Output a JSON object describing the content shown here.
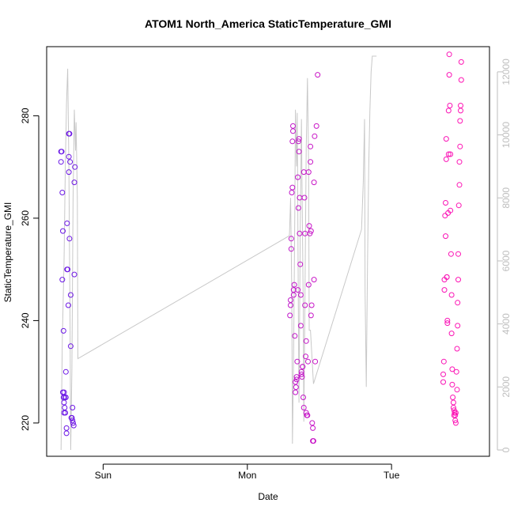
{
  "chart_data": {
    "type": "scatter",
    "title": "ATOM1 North_America StaticTemperature_GMI",
    "xlabel": "Date",
    "ylabel": "StaticTemperature_GMI",
    "x_ticks": [
      "Sun",
      "Mon",
      "Tue"
    ],
    "y_ticks": [
      220,
      240,
      260,
      280
    ],
    "y_range": [
      213.5,
      293.5
    ],
    "right_axis": {
      "ticks": [
        0,
        2000,
        4000,
        6000,
        8000,
        10000,
        12000
      ],
      "range": [
        -200,
        12800
      ],
      "color": "#bebebe",
      "series": "altitude trace (grey line)"
    },
    "x_units": "hours since Saturday 00:00",
    "x_range": [
      14.6,
      88.3
    ],
    "x_tick_values": [
      24,
      48,
      72
    ],
    "grid": false,
    "legend": "none",
    "point_color_start": "#6a17e6",
    "point_color_end": "#ff14b4",
    "line_color": "#c8c8c8",
    "line": [
      [
        17.0,
        0
      ],
      [
        17.2,
        3500
      ],
      [
        17.5,
        6000
      ],
      [
        17.7,
        9000
      ],
      [
        17.9,
        11000
      ],
      [
        18.1,
        12100
      ],
      [
        18.3,
        9000
      ],
      [
        18.5,
        4000
      ],
      [
        18.6,
        0
      ],
      [
        18.8,
        2500
      ],
      [
        19.0,
        8000
      ],
      [
        19.2,
        10800
      ],
      [
        19.4,
        9500
      ],
      [
        19.5,
        10400
      ],
      [
        19.7,
        8000
      ],
      [
        19.8,
        2900
      ],
      [
        55.0,
        6800
      ],
      [
        55.2,
        8000
      ],
      [
        55.4,
        5000
      ],
      [
        55.5,
        200
      ],
      [
        55.7,
        3000
      ],
      [
        55.9,
        7500
      ],
      [
        56.0,
        10800
      ],
      [
        56.2,
        9000
      ],
      [
        56.3,
        10700
      ],
      [
        56.5,
        4000
      ],
      [
        56.6,
        1500
      ],
      [
        56.8,
        7000
      ],
      [
        57.0,
        10500
      ],
      [
        57.1,
        8500
      ],
      [
        57.3,
        4500
      ],
      [
        57.4,
        900
      ],
      [
        57.6,
        5000
      ],
      [
        57.8,
        9500
      ],
      [
        58.0,
        11800
      ],
      [
        58.2,
        9000
      ],
      [
        58.3,
        3800
      ],
      [
        58.5,
        3800
      ],
      [
        59.0,
        2100
      ],
      [
        67.0,
        7000
      ],
      [
        67.3,
        8500
      ],
      [
        67.5,
        10500
      ],
      [
        67.6,
        5000
      ],
      [
        67.8,
        2000
      ],
      [
        68.0,
        6000
      ],
      [
        68.2,
        9000
      ],
      [
        68.4,
        10800
      ],
      [
        68.6,
        12000
      ],
      [
        68.8,
        12500
      ],
      [
        69.2,
        12500
      ],
      [
        69.5,
        12500
      ]
    ],
    "points": [
      [
        17.1,
        273
      ],
      [
        17.0,
        273
      ],
      [
        17.0,
        271
      ],
      [
        17.2,
        265
      ],
      [
        17.3,
        257.5
      ],
      [
        17.2,
        248
      ],
      [
        17.4,
        238
      ],
      [
        17.3,
        226
      ],
      [
        17.4,
        225
      ],
      [
        17.5,
        226
      ],
      [
        17.5,
        222
      ],
      [
        17.6,
        225
      ],
      [
        17.6,
        223
      ],
      [
        17.5,
        224
      ],
      [
        17.7,
        222
      ],
      [
        17.8,
        225
      ],
      [
        17.9,
        218
      ],
      [
        17.9,
        219
      ],
      [
        17.8,
        230
      ],
      [
        18.0,
        259
      ],
      [
        18.0,
        250
      ],
      [
        18.1,
        250
      ],
      [
        18.2,
        243
      ],
      [
        18.3,
        269
      ],
      [
        18.3,
        272
      ],
      [
        18.4,
        276.5
      ],
      [
        18.3,
        276.5
      ],
      [
        18.5,
        271
      ],
      [
        18.4,
        256
      ],
      [
        18.6,
        245
      ],
      [
        18.6,
        235
      ],
      [
        18.7,
        221
      ],
      [
        18.8,
        221
      ],
      [
        18.9,
        220.5
      ],
      [
        18.9,
        223
      ],
      [
        19.0,
        220
      ],
      [
        19.1,
        219.5
      ],
      [
        19.2,
        267
      ],
      [
        19.3,
        270
      ],
      [
        19.2,
        249
      ],
      [
        55.1,
        241
      ],
      [
        55.2,
        243
      ],
      [
        55.2,
        244
      ],
      [
        55.3,
        254
      ],
      [
        55.3,
        256
      ],
      [
        55.4,
        265
      ],
      [
        55.5,
        266
      ],
      [
        55.5,
        275
      ],
      [
        55.6,
        277
      ],
      [
        55.6,
        278
      ],
      [
        55.7,
        246
      ],
      [
        55.7,
        245
      ],
      [
        55.8,
        247
      ],
      [
        55.9,
        237
      ],
      [
        56.0,
        226
      ],
      [
        56.0,
        228
      ],
      [
        56.1,
        227
      ],
      [
        56.2,
        228.5
      ],
      [
        56.2,
        229
      ],
      [
        56.3,
        232
      ],
      [
        56.4,
        246
      ],
      [
        56.4,
        268
      ],
      [
        56.5,
        262
      ],
      [
        56.5,
        275
      ],
      [
        56.6,
        275.5
      ],
      [
        56.6,
        273
      ],
      [
        56.7,
        264
      ],
      [
        56.7,
        257
      ],
      [
        56.8,
        251
      ],
      [
        56.9,
        239
      ],
      [
        56.9,
        245
      ],
      [
        57.0,
        230
      ],
      [
        57.0,
        229.5
      ],
      [
        57.1,
        229
      ],
      [
        57.2,
        231
      ],
      [
        57.2,
        231
      ],
      [
        57.3,
        225
      ],
      [
        57.4,
        223
      ],
      [
        57.4,
        269
      ],
      [
        57.5,
        264
      ],
      [
        57.6,
        257
      ],
      [
        57.6,
        243
      ],
      [
        57.7,
        233
      ],
      [
        57.8,
        236
      ],
      [
        57.8,
        222
      ],
      [
        57.9,
        221.5
      ],
      [
        58.0,
        221.5
      ],
      [
        58.1,
        232
      ],
      [
        58.2,
        247
      ],
      [
        58.2,
        269
      ],
      [
        58.3,
        258.5
      ],
      [
        58.4,
        257
      ],
      [
        58.5,
        274
      ],
      [
        58.5,
        271
      ],
      [
        58.6,
        257.5
      ],
      [
        58.6,
        241
      ],
      [
        58.7,
        243
      ],
      [
        58.8,
        220
      ],
      [
        58.9,
        219
      ],
      [
        59.0,
        216.5
      ],
      [
        58.9,
        216.5
      ],
      [
        59.1,
        248
      ],
      [
        59.1,
        267
      ],
      [
        59.2,
        276
      ],
      [
        59.3,
        232
      ],
      [
        59.5,
        278
      ],
      [
        59.7,
        288
      ],
      [
        80.6,
        229.5
      ],
      [
        80.6,
        228
      ],
      [
        80.7,
        232
      ],
      [
        80.8,
        248
      ],
      [
        80.8,
        246
      ],
      [
        80.9,
        260.5
      ],
      [
        81.0,
        263
      ],
      [
        81.0,
        256.5
      ],
      [
        81.1,
        271.5
      ],
      [
        81.1,
        275.5
      ],
      [
        81.2,
        248.5
      ],
      [
        81.2,
        248.5
      ],
      [
        81.3,
        240
      ],
      [
        81.3,
        239.5
      ],
      [
        81.4,
        261
      ],
      [
        81.5,
        272.5
      ],
      [
        81.5,
        281
      ],
      [
        81.6,
        292
      ],
      [
        81.6,
        288
      ],
      [
        81.7,
        282
      ],
      [
        81.8,
        272.5
      ],
      [
        81.8,
        261.5
      ],
      [
        81.9,
        253
      ],
      [
        82.0,
        245
      ],
      [
        82.0,
        237.5
      ],
      [
        82.1,
        227.5
      ],
      [
        82.1,
        230.5
      ],
      [
        82.2,
        225
      ],
      [
        82.3,
        224
      ],
      [
        82.3,
        223
      ],
      [
        82.4,
        222.5
      ],
      [
        82.4,
        221.5
      ],
      [
        82.5,
        222
      ],
      [
        82.6,
        221.5
      ],
      [
        82.6,
        220.5
      ],
      [
        82.7,
        220
      ],
      [
        82.7,
        222
      ],
      [
        82.8,
        230
      ],
      [
        82.9,
        226.5
      ],
      [
        82.9,
        234.5
      ],
      [
        83.0,
        239
      ],
      [
        83.0,
        243.5
      ],
      [
        83.1,
        248
      ],
      [
        83.1,
        253
      ],
      [
        83.2,
        262.5
      ],
      [
        83.3,
        266.5
      ],
      [
        83.3,
        271
      ],
      [
        83.4,
        274
      ],
      [
        83.4,
        279
      ],
      [
        83.5,
        281
      ],
      [
        83.5,
        282
      ],
      [
        83.6,
        287
      ],
      [
        83.6,
        290.5
      ]
    ]
  }
}
